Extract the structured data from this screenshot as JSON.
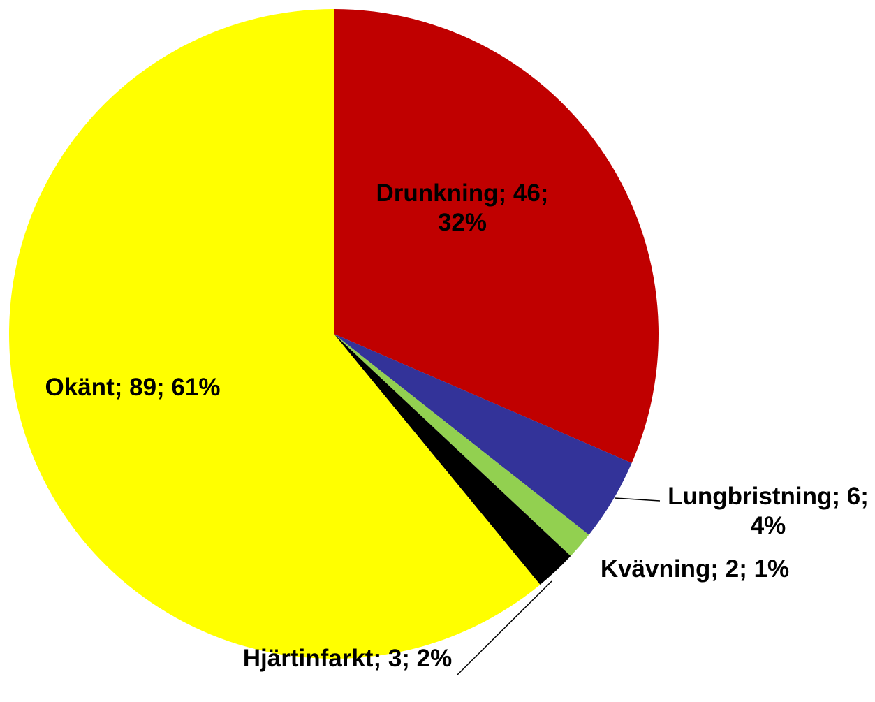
{
  "chart_data": {
    "type": "pie",
    "categories": [
      "Drunkning",
      "Lungbristning",
      "Kvävning",
      "Hjärtinfarkt",
      "Okänt"
    ],
    "values": [
      46,
      6,
      2,
      3,
      89
    ],
    "value_labels": [
      "Drunkning; 46; 32%",
      "Lungbristning; 6; 4%",
      "Kvävning; 2; 1%",
      "Hjärtinfarkt; 3; 2%",
      "Okänt; 89; 61%"
    ],
    "colors": [
      "#c00000",
      "#333399",
      "#92d050",
      "#000000",
      "#ffff00"
    ]
  }
}
